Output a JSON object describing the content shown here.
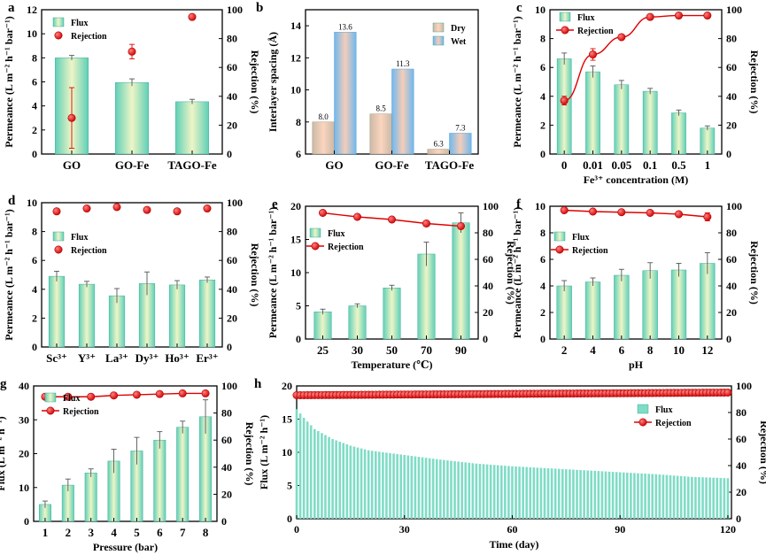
{
  "panels": [
    {
      "id": "a",
      "chart_data": {
        "type": "bar",
        "categories": [
          "GO",
          "GO-Fe",
          "TAGO-Fe"
        ],
        "ylabel": "Permeance (L m⁻² h⁻¹ bar⁻¹)",
        "ylim": [
          0,
          12
        ],
        "yticks": [
          0,
          2,
          4,
          6,
          8,
          10,
          12
        ],
        "y2label": "Rejection (%)",
        "y2lim": [
          0,
          100
        ],
        "y2ticks": [
          0,
          20,
          40,
          60,
          80,
          100
        ],
        "legend": [
          "Flux",
          "Rejection"
        ],
        "legend_position": "top-left",
        "series": [
          {
            "name": "Flux",
            "type": "bar",
            "axis": "left",
            "values": [
              8.0,
              5.95,
              4.35
            ],
            "errors": [
              0.2,
              0.3,
              0.2
            ]
          },
          {
            "name": "Rejection",
            "type": "scatter",
            "axis": "right",
            "values": [
              25,
              71,
              95
            ],
            "errors": [
              21,
              5,
              0
            ]
          }
        ]
      }
    },
    {
      "id": "b",
      "chart_data": {
        "type": "bar",
        "categories": [
          "GO",
          "GO-Fe",
          "TAGO-Fe"
        ],
        "ylabel": "Interlayer spacing (Å)",
        "ylim": [
          6,
          15
        ],
        "yticks": [
          6,
          8,
          10,
          12,
          14
        ],
        "legend": [
          "Dry",
          "Wet"
        ],
        "legend_position": "top-right",
        "series": [
          {
            "name": "Dry",
            "values": [
              8.0,
              8.5,
              6.3
            ],
            "labels": [
              "8.0",
              "8.5",
              "6.3"
            ]
          },
          {
            "name": "Wet",
            "values": [
              13.6,
              11.3,
              7.3
            ],
            "labels": [
              "13.6",
              "11.3",
              "7.3"
            ]
          }
        ]
      }
    },
    {
      "id": "c",
      "chart_data": {
        "type": "bar",
        "categories": [
          "0",
          "0.01",
          "0.05",
          "0.1",
          "0.5",
          "1"
        ],
        "xlabel": "Fe³⁺ concentration (M)",
        "ylabel": "Permeance (L m⁻² h⁻¹ bar⁻¹)",
        "ylim": [
          0,
          10
        ],
        "yticks": [
          0,
          2,
          4,
          6,
          8,
          10
        ],
        "y2label": "Rejection (%)",
        "y2lim": [
          0,
          100
        ],
        "y2ticks": [
          0,
          20,
          40,
          60,
          80,
          100
        ],
        "legend": [
          "Flux",
          "Rejection"
        ],
        "legend_position": "top-left",
        "series": [
          {
            "name": "Flux",
            "type": "bar",
            "axis": "left",
            "values": [
              6.6,
              5.7,
              4.8,
              4.35,
              2.85,
              1.8
            ],
            "errors": [
              0.4,
              0.4,
              0.3,
              0.2,
              0.2,
              0.15
            ]
          },
          {
            "name": "Rejection",
            "type": "line",
            "axis": "right",
            "values": [
              37,
              69,
              81,
              95,
              96,
              96
            ],
            "errors": [
              3,
              4,
              1,
              0,
              0,
              0
            ]
          }
        ]
      }
    },
    {
      "id": "d",
      "chart_data": {
        "type": "bar",
        "categories": [
          "Sc³⁺",
          "Y³⁺",
          "La³⁺",
          "Dy³⁺",
          "Ho³⁺",
          "Er³⁺"
        ],
        "ylabel": "Permeance (L m⁻² h⁻¹ bar⁻¹)",
        "ylim": [
          0,
          10
        ],
        "yticks": [
          0,
          2,
          4,
          6,
          8,
          10
        ],
        "y2label": "Rejection (%)",
        "y2lim": [
          0,
          100
        ],
        "y2ticks": [
          0,
          20,
          40,
          60,
          80,
          100
        ],
        "legend": [
          "Flux",
          "Rejection"
        ],
        "legend_position": "middle-left",
        "series": [
          {
            "name": "Flux",
            "type": "bar",
            "axis": "left",
            "values": [
              4.9,
              4.35,
              3.55,
              4.4,
              4.3,
              4.65
            ],
            "errors": [
              0.35,
              0.2,
              0.5,
              0.8,
              0.3,
              0.2
            ]
          },
          {
            "name": "Rejection",
            "type": "scatter",
            "axis": "right",
            "values": [
              94,
              96,
              97,
              95,
              94,
              96
            ],
            "errors": [
              1.5,
              1,
              1,
              1.5,
              1,
              1
            ]
          }
        ]
      }
    },
    {
      "id": "e",
      "chart_data": {
        "type": "bar",
        "categories": [
          "25",
          "30",
          "50",
          "70",
          "90"
        ],
        "xlabel": "Temperature (℃)",
        "ylabel": "Permeance (L m⁻² h⁻¹ bar⁻¹)",
        "ylim": [
          0,
          20
        ],
        "yticks": [
          0,
          5,
          10,
          15,
          20
        ],
        "y2label": "Rejection (%)",
        "y2lim": [
          0,
          100
        ],
        "y2ticks": [
          0,
          20,
          40,
          60,
          80,
          100
        ],
        "legend": [
          "Flux",
          "Rejection"
        ],
        "legend_position": "middle-left",
        "series": [
          {
            "name": "Flux",
            "type": "bar",
            "axis": "left",
            "values": [
              4.1,
              5.0,
              7.7,
              12.8,
              17.5
            ],
            "errors": [
              0.4,
              0.3,
              0.4,
              1.8,
              1.5
            ]
          },
          {
            "name": "Rejection",
            "type": "line",
            "axis": "right",
            "values": [
              95,
              92,
              90,
              87,
              85
            ],
            "errors": [
              0.5,
              0.5,
              0.5,
              0.5,
              0.5
            ]
          }
        ]
      }
    },
    {
      "id": "f",
      "chart_data": {
        "type": "bar",
        "categories": [
          "2",
          "4",
          "6",
          "8",
          "10",
          "12"
        ],
        "xlabel": "pH",
        "ylabel": "Permeance (L m⁻² h⁻¹ bar⁻¹)",
        "ylim": [
          0,
          10
        ],
        "yticks": [
          0,
          2,
          4,
          6,
          8,
          10
        ],
        "y2label": "Rejection (%)",
        "y2lim": [
          0,
          100
        ],
        "y2ticks": [
          0,
          20,
          40,
          60,
          80,
          100
        ],
        "legend": [
          "Flux",
          "Rejection"
        ],
        "legend_position": "middle-left",
        "series": [
          {
            "name": "Flux",
            "type": "bar",
            "axis": "left",
            "values": [
              4.0,
              4.3,
              4.8,
              5.15,
              5.2,
              5.7
            ],
            "errors": [
              0.4,
              0.3,
              0.45,
              0.6,
              0.5,
              0.8
            ]
          },
          {
            "name": "Rejection",
            "type": "line",
            "axis": "right",
            "values": [
              97,
              96,
              95.5,
              95,
              94,
              92
            ],
            "errors": [
              0.5,
              0.5,
              0.5,
              1.5,
              0.5,
              3
            ]
          }
        ]
      }
    },
    {
      "id": "g",
      "chart_data": {
        "type": "bar",
        "categories": [
          "1",
          "2",
          "3",
          "4",
          "5",
          "6",
          "7",
          "8"
        ],
        "xlabel": "Pressure (bar)",
        "ylabel": "Flux (L m⁻² h⁻¹)",
        "ylim": [
          0,
          40
        ],
        "yticks": [
          0,
          10,
          20,
          30,
          40
        ],
        "y2label": "Rejection (%)",
        "y2lim": [
          0,
          100
        ],
        "y2ticks": [
          0,
          20,
          40,
          60,
          80,
          100
        ],
        "legend": [
          "Flux",
          "Rejection"
        ],
        "legend_position": "top-left",
        "series": [
          {
            "name": "Flux",
            "type": "bar",
            "axis": "left",
            "values": [
              5.0,
              10.7,
              14.3,
              17.8,
              20.8,
              24.0,
              27.8,
              30.9
            ],
            "errors": [
              1.0,
              1.8,
              1.2,
              3.5,
              4.0,
              2.5,
              1.8,
              5.0
            ]
          },
          {
            "name": "Rejection",
            "type": "line",
            "axis": "right",
            "values": [
              92,
              92,
              92,
              93,
              93.5,
              94,
              94.5,
              94.5
            ],
            "errors": [
              0.5,
              0.5,
              0.5,
              0.5,
              0.5,
              0.5,
              0.5,
              0.5
            ]
          }
        ]
      }
    },
    {
      "id": "h",
      "chart_data": {
        "type": "bar",
        "xlabel": "Time (day)",
        "ylabel": "Flux (L m⁻² h⁻¹)",
        "xlim": [
          0,
          121
        ],
        "xticks": [
          0,
          30,
          60,
          90,
          120
        ],
        "ylim": [
          0,
          20
        ],
        "yticks": [
          0,
          5,
          10,
          15,
          20
        ],
        "y2label": "Rejection (%)",
        "y2lim": [
          0,
          100
        ],
        "y2ticks": [
          0,
          20,
          40,
          60,
          80,
          100
        ],
        "legend": [
          "Flux",
          "Rejection"
        ],
        "legend_position": "top-right",
        "series": [
          {
            "name": "Flux",
            "type": "bar",
            "axis": "left",
            "x": [
              0,
              2,
              5,
              10,
              15,
              20,
              30,
              40,
              50,
              60,
              70,
              80,
              90,
              100,
              110,
              120
            ],
            "values": [
              16.5,
              15.2,
              13.5,
              12.0,
              11.0,
              10.3,
              9.6,
              8.9,
              8.3,
              7.9,
              7.6,
              7.3,
              7.0,
              6.7,
              6.3,
              6.1
            ],
            "sample_every": 1
          },
          {
            "name": "Rejection",
            "type": "line",
            "axis": "right",
            "x": [
              0,
              120
            ],
            "values": [
              93,
              95
            ],
            "sample_every": 1
          }
        ]
      }
    }
  ]
}
